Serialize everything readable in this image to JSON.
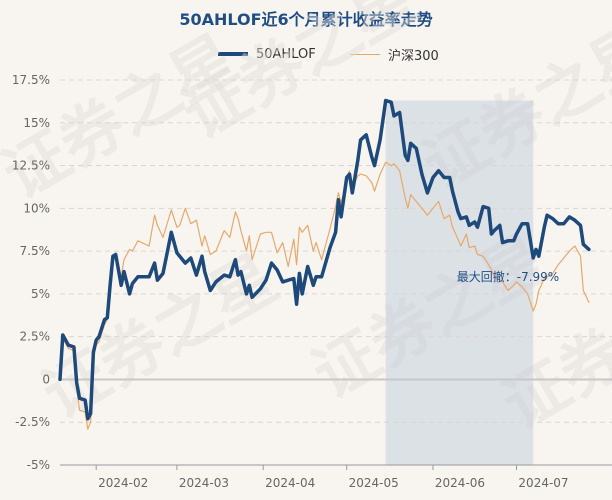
{
  "chart_data": {
    "type": "line",
    "title": "50AHLOF近6个月累计收益率走势",
    "yunit": "%",
    "ylim": [
      -5,
      17.5
    ],
    "yticks": [
      -5,
      -2.5,
      0,
      2.5,
      5,
      7.5,
      10,
      12.5,
      15,
      17.5
    ],
    "ytick_labels": [
      "-5%",
      "-2.5%",
      "0",
      "2.5%",
      "5%",
      "7.5%",
      "10%",
      "12.5%",
      "15%",
      "17.5%"
    ],
    "xlim": [
      "2024-01-19",
      "2024-07-31"
    ],
    "xticks": [
      "2024-02-01",
      "2024-03-01",
      "2024-04-01",
      "2024-05-01",
      "2024-06-01",
      "2024-07-01"
    ],
    "xtick_labels": [
      "2024-02",
      "2024-03",
      "2024-04",
      "2024-05",
      "2024-06",
      "2024-07"
    ],
    "grid": true,
    "legend_position": "top-center",
    "series": [
      {
        "name": "50AHLOF",
        "color": "#1d4a7a",
        "points": [
          [
            "2024-01-19",
            0
          ],
          [
            "2024-01-20",
            2.6
          ],
          [
            "2024-01-22",
            2.0
          ],
          [
            "2024-01-24",
            1.9
          ],
          [
            "2024-01-25",
            -0.2
          ],
          [
            "2024-01-26",
            -1.1
          ],
          [
            "2024-01-28",
            -1.2
          ],
          [
            "2024-01-29",
            -2.3
          ],
          [
            "2024-01-30",
            -2.0
          ],
          [
            "2024-01-31",
            1.6
          ],
          [
            "2024-02-01",
            2.3
          ],
          [
            "2024-02-02",
            2.5
          ],
          [
            "2024-02-04",
            3.5
          ],
          [
            "2024-02-05",
            3.6
          ],
          [
            "2024-02-06",
            5.5
          ],
          [
            "2024-02-07",
            7.2
          ],
          [
            "2024-02-08",
            7.3
          ],
          [
            "2024-02-10",
            5.5
          ],
          [
            "2024-02-11",
            6.3
          ],
          [
            "2024-02-13",
            5.0
          ],
          [
            "2024-02-14",
            5.6
          ],
          [
            "2024-02-16",
            6.0
          ],
          [
            "2024-02-20",
            6.0
          ],
          [
            "2024-02-22",
            6.8
          ],
          [
            "2024-02-23",
            5.8
          ],
          [
            "2024-02-25",
            6.2
          ],
          [
            "2024-02-28",
            8.6
          ],
          [
            "2024-03-01",
            7.4
          ],
          [
            "2024-03-04",
            6.8
          ],
          [
            "2024-03-06",
            7.1
          ],
          [
            "2024-03-08",
            6.1
          ],
          [
            "2024-03-10",
            7.2
          ],
          [
            "2024-03-11",
            6.3
          ],
          [
            "2024-03-13",
            5.2
          ],
          [
            "2024-03-15",
            5.7
          ],
          [
            "2024-03-18",
            6.1
          ],
          [
            "2024-03-20",
            6.0
          ],
          [
            "2024-03-22",
            7.0
          ],
          [
            "2024-03-23",
            6.1
          ],
          [
            "2024-03-24",
            6.3
          ],
          [
            "2024-03-26",
            5.0
          ],
          [
            "2024-03-27",
            5.5
          ],
          [
            "2024-03-28",
            4.8
          ],
          [
            "2024-03-31",
            5.3
          ],
          [
            "2024-04-02",
            5.8
          ],
          [
            "2024-04-04",
            6.8
          ],
          [
            "2024-04-06",
            6.4
          ],
          [
            "2024-04-08",
            5.7
          ],
          [
            "2024-04-10",
            5.8
          ],
          [
            "2024-04-12",
            5.9
          ],
          [
            "2024-04-13",
            4.4
          ],
          [
            "2024-04-14",
            6.2
          ],
          [
            "2024-04-15",
            5.0
          ],
          [
            "2024-04-17",
            6.6
          ],
          [
            "2024-04-19",
            5.5
          ],
          [
            "2024-04-20",
            6.0
          ],
          [
            "2024-04-22",
            6.0
          ],
          [
            "2024-04-25",
            7.7
          ],
          [
            "2024-04-27",
            8.6
          ],
          [
            "2024-04-28",
            10.5
          ],
          [
            "2024-04-29",
            9.5
          ],
          [
            "2024-05-01",
            11.8
          ],
          [
            "2024-05-02",
            12.0
          ],
          [
            "2024-05-03",
            10.9
          ],
          [
            "2024-05-05",
            12.8
          ],
          [
            "2024-05-06",
            14.0
          ],
          [
            "2024-05-08",
            14.3
          ],
          [
            "2024-05-10",
            13.0
          ],
          [
            "2024-05-11",
            12.5
          ],
          [
            "2024-05-13",
            14.0
          ],
          [
            "2024-05-15",
            16.3
          ],
          [
            "2024-05-17",
            16.2
          ],
          [
            "2024-05-18",
            15.4
          ],
          [
            "2024-05-20",
            15.6
          ],
          [
            "2024-05-22",
            13.1
          ],
          [
            "2024-05-23",
            12.8
          ],
          [
            "2024-05-24",
            13.8
          ],
          [
            "2024-05-26",
            13.5
          ],
          [
            "2024-05-28",
            12.0
          ],
          [
            "2024-05-30",
            10.9
          ],
          [
            "2024-06-01",
            11.8
          ],
          [
            "2024-06-03",
            12.2
          ],
          [
            "2024-06-05",
            11.8
          ],
          [
            "2024-06-07",
            11.8
          ],
          [
            "2024-06-08",
            11.0
          ],
          [
            "2024-06-10",
            9.8
          ],
          [
            "2024-06-11",
            9.4
          ],
          [
            "2024-06-13",
            9.5
          ],
          [
            "2024-06-14",
            9.0
          ],
          [
            "2024-06-16",
            9.2
          ],
          [
            "2024-06-17",
            8.9
          ],
          [
            "2024-06-19",
            10.1
          ],
          [
            "2024-06-21",
            10.0
          ],
          [
            "2024-06-22",
            8.5
          ],
          [
            "2024-06-23",
            8.7
          ],
          [
            "2024-06-25",
            9.0
          ],
          [
            "2024-06-26",
            8.0
          ],
          [
            "2024-06-28",
            8.1
          ],
          [
            "2024-06-30",
            8.1
          ],
          [
            "2024-07-01",
            8.5
          ],
          [
            "2024-07-03",
            9.1
          ],
          [
            "2024-07-05",
            9.1
          ],
          [
            "2024-07-07",
            7.1
          ],
          [
            "2024-07-08",
            7.6
          ],
          [
            "2024-07-09",
            7.2
          ],
          [
            "2024-07-11",
            8.9
          ],
          [
            "2024-07-12",
            9.6
          ],
          [
            "2024-07-14",
            9.4
          ],
          [
            "2024-07-16",
            9.1
          ],
          [
            "2024-07-18",
            9.1
          ],
          [
            "2024-07-20",
            9.5
          ],
          [
            "2024-07-22",
            9.3
          ],
          [
            "2024-07-24",
            9.0
          ],
          [
            "2024-07-25",
            7.9
          ],
          [
            "2024-07-27",
            7.6
          ]
        ]
      },
      {
        "name": "沪深300",
        "color": "#e8a86a",
        "points": [
          [
            "2024-01-19",
            0
          ],
          [
            "2024-01-20",
            2.4
          ],
          [
            "2024-01-22",
            1.8
          ],
          [
            "2024-01-24",
            1.7
          ],
          [
            "2024-01-25",
            -0.5
          ],
          [
            "2024-01-26",
            -1.8
          ],
          [
            "2024-01-28",
            -1.9
          ],
          [
            "2024-01-29",
            -2.9
          ],
          [
            "2024-01-30",
            -2.5
          ],
          [
            "2024-01-31",
            1.2
          ],
          [
            "2024-02-01",
            2.0
          ],
          [
            "2024-02-02",
            2.2
          ],
          [
            "2024-02-04",
            3.2
          ],
          [
            "2024-02-05",
            3.5
          ],
          [
            "2024-02-06",
            5.8
          ],
          [
            "2024-02-07",
            6.8
          ],
          [
            "2024-02-08",
            7.3
          ],
          [
            "2024-02-10",
            6.0
          ],
          [
            "2024-02-11",
            7.0
          ],
          [
            "2024-02-13",
            7.6
          ],
          [
            "2024-02-14",
            7.5
          ],
          [
            "2024-02-16",
            8.1
          ],
          [
            "2024-02-20",
            7.8
          ],
          [
            "2024-02-22",
            9.6
          ],
          [
            "2024-02-23",
            9.0
          ],
          [
            "2024-02-25",
            8.3
          ],
          [
            "2024-02-28",
            9.9
          ],
          [
            "2024-03-01",
            8.9
          ],
          [
            "2024-03-02",
            9.0
          ],
          [
            "2024-03-04",
            10.0
          ],
          [
            "2024-03-06",
            9.1
          ],
          [
            "2024-03-08",
            9.3
          ],
          [
            "2024-03-10",
            7.8
          ],
          [
            "2024-03-11",
            8.4
          ],
          [
            "2024-03-13",
            7.3
          ],
          [
            "2024-03-15",
            7.5
          ],
          [
            "2024-03-18",
            8.7
          ],
          [
            "2024-03-20",
            8.3
          ],
          [
            "2024-03-22",
            9.8
          ],
          [
            "2024-03-23",
            9.4
          ],
          [
            "2024-03-24",
            8.7
          ],
          [
            "2024-03-26",
            7.5
          ],
          [
            "2024-03-27",
            8.4
          ],
          [
            "2024-03-28",
            7.0
          ],
          [
            "2024-03-31",
            8.5
          ],
          [
            "2024-04-02",
            8.6
          ],
          [
            "2024-04-04",
            8.6
          ],
          [
            "2024-04-06",
            7.4
          ],
          [
            "2024-04-08",
            8.0
          ],
          [
            "2024-04-10",
            6.6
          ],
          [
            "2024-04-12",
            8.2
          ],
          [
            "2024-04-13",
            6.7
          ],
          [
            "2024-04-14",
            8.9
          ],
          [
            "2024-04-15",
            8.6
          ],
          [
            "2024-04-17",
            9.0
          ],
          [
            "2024-04-19",
            7.5
          ],
          [
            "2024-04-20",
            8.0
          ],
          [
            "2024-04-22",
            7.0
          ],
          [
            "2024-04-25",
            8.8
          ],
          [
            "2024-04-27",
            10.1
          ],
          [
            "2024-04-28",
            10.9
          ],
          [
            "2024-04-29",
            10.3
          ],
          [
            "2024-05-01",
            11.6
          ],
          [
            "2024-05-02",
            12.2
          ],
          [
            "2024-05-03",
            11.2
          ],
          [
            "2024-05-05",
            11.9
          ],
          [
            "2024-05-06",
            12.0
          ],
          [
            "2024-05-08",
            11.9
          ],
          [
            "2024-05-10",
            11.5
          ],
          [
            "2024-05-11",
            11.0
          ],
          [
            "2024-05-13",
            12.0
          ],
          [
            "2024-05-15",
            12.7
          ],
          [
            "2024-05-17",
            12.5
          ],
          [
            "2024-05-18",
            12.6
          ],
          [
            "2024-05-20",
            12.2
          ],
          [
            "2024-05-22",
            10.6
          ],
          [
            "2024-05-23",
            10.0
          ],
          [
            "2024-05-24",
            10.8
          ],
          [
            "2024-05-26",
            10.4
          ],
          [
            "2024-05-28",
            10.0
          ],
          [
            "2024-05-30",
            9.6
          ],
          [
            "2024-06-01",
            10.0
          ],
          [
            "2024-06-03",
            10.4
          ],
          [
            "2024-06-05",
            9.4
          ],
          [
            "2024-06-07",
            9.6
          ],
          [
            "2024-06-08",
            8.9
          ],
          [
            "2024-06-10",
            8.2
          ],
          [
            "2024-06-11",
            7.8
          ],
          [
            "2024-06-13",
            8.5
          ],
          [
            "2024-06-14",
            7.7
          ],
          [
            "2024-06-16",
            7.8
          ],
          [
            "2024-06-17",
            7.3
          ],
          [
            "2024-06-19",
            7.2
          ],
          [
            "2024-06-21",
            6.7
          ],
          [
            "2024-06-22",
            6.4
          ],
          [
            "2024-06-23",
            6.0
          ],
          [
            "2024-06-25",
            5.8
          ],
          [
            "2024-06-26",
            5.7
          ],
          [
            "2024-06-28",
            5.2
          ],
          [
            "2024-06-30",
            5.5
          ],
          [
            "2024-07-01",
            5.7
          ],
          [
            "2024-07-03",
            5.4
          ],
          [
            "2024-07-05",
            5.0
          ],
          [
            "2024-07-07",
            4.0
          ],
          [
            "2024-07-08",
            4.4
          ],
          [
            "2024-07-09",
            5.2
          ],
          [
            "2024-07-11",
            5.9
          ],
          [
            "2024-07-12",
            6.0
          ],
          [
            "2024-07-14",
            6.2
          ],
          [
            "2024-07-16",
            6.7
          ],
          [
            "2024-07-18",
            7.1
          ],
          [
            "2024-07-20",
            7.5
          ],
          [
            "2024-07-22",
            7.8
          ],
          [
            "2024-07-24",
            7.2
          ],
          [
            "2024-07-25",
            5.2
          ],
          [
            "2024-07-27",
            4.5
          ]
        ]
      }
    ],
    "drawdown": {
      "start": "2024-05-15",
      "end": "2024-07-07",
      "label": "最大回撤：-7.99%",
      "color": "#c5d0dc"
    }
  },
  "watermark": "证券之星"
}
